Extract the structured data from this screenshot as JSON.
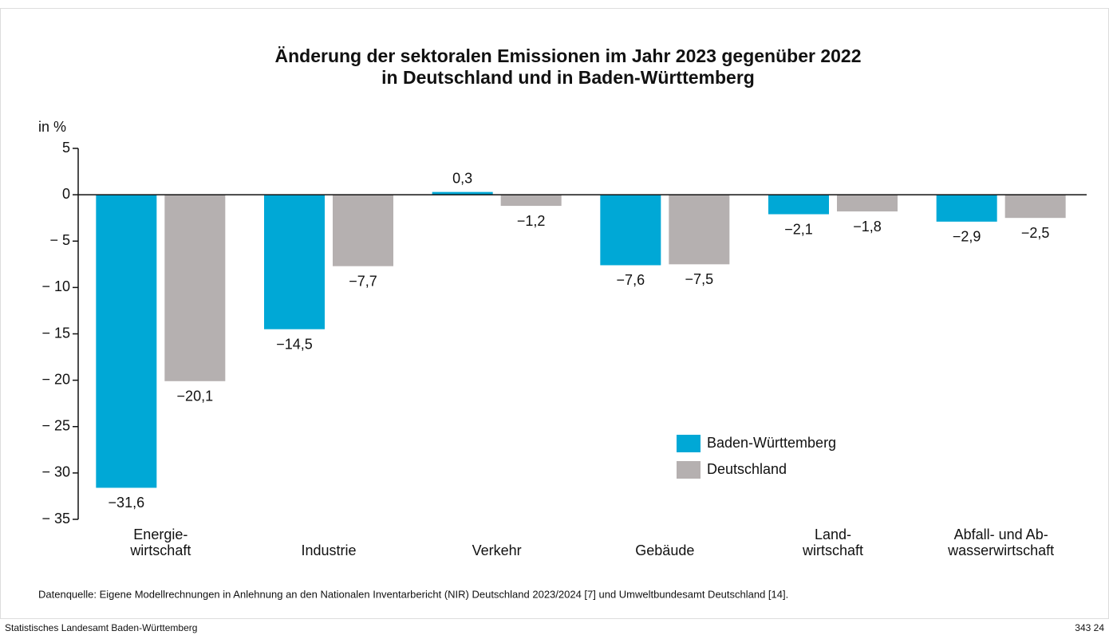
{
  "chart_data": {
    "type": "bar",
    "title": [
      "Änderung der sektoralen Emissionen im Jahr 2023 gegenüber 2022",
      "in Deutschland und in Baden-Württemberg"
    ],
    "y_label": "in %",
    "categories": [
      [
        "Energie-",
        "wirtschaft"
      ],
      [
        "Industrie"
      ],
      [
        "Verkehr"
      ],
      [
        "Gebäude"
      ],
      [
        "Land-",
        "wirtschaft"
      ],
      [
        "Abfall- und Ab-",
        "wasserwirtschaft"
      ]
    ],
    "series": [
      {
        "name": "Baden-Württemberg",
        "color": "#00a8d6",
        "values": [
          -31.6,
          -14.5,
          0.3,
          -7.6,
          -2.1,
          -2.9
        ],
        "value_labels": [
          "−31,6",
          "−14,5",
          "0,3",
          "−7,6",
          "−2,1",
          "−2,9"
        ]
      },
      {
        "name": "Deutschland",
        "color": "#b5b0b0",
        "values": [
          -20.1,
          -7.7,
          -1.2,
          -7.5,
          -1.8,
          -2.5
        ],
        "value_labels": [
          "−20,1",
          "−7,7",
          "−1,2",
          "−7,5",
          "−1,8",
          "−2,5"
        ]
      }
    ],
    "ylim": [
      -35,
      5
    ],
    "yticks": [
      5,
      0,
      {
        "value": -5,
        "label": "− 5"
      },
      {
        "value": -10,
        "label": "− 10"
      },
      {
        "value": -15,
        "label": "− 15"
      },
      {
        "value": -20,
        "label": "− 20"
      },
      {
        "value": -25,
        "label": "− 25"
      },
      {
        "value": -30,
        "label": "− 30"
      },
      {
        "value": -35,
        "label": "− 35"
      }
    ],
    "grid": false,
    "legend": "lower right",
    "source": "Datenquelle: Eigene Modellrechnungen in Anlehnung an den Nationalen Inventarbericht (NIR) Deutschland 2023/2024 [7] und Umweltbundesamt Deutschland  [14]."
  },
  "footer": {
    "left": "Statistisches Landesamt Baden-Württemberg",
    "right": "343 24"
  }
}
